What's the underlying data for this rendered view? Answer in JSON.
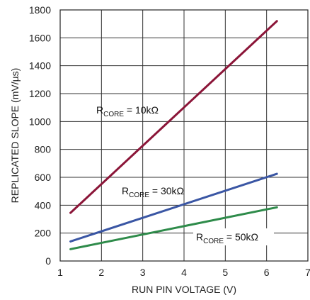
{
  "chart_data": {
    "type": "line",
    "xlabel": "RUN PIN VOLTAGE (V)",
    "ylabel": "REPLICATED SLOPE (mV/µs)",
    "xlim": [
      1,
      7
    ],
    "ylim": [
      0,
      1800
    ],
    "x_ticks": [
      1,
      2,
      3,
      4,
      5,
      6,
      7
    ],
    "y_ticks": [
      0,
      200,
      400,
      600,
      800,
      1000,
      1200,
      1400,
      1600,
      1800
    ],
    "grid": true,
    "series": [
      {
        "name": "RCORE = 10kΩ",
        "label_main": "R",
        "label_sub": "CORE",
        "label_rest": " = 10kΩ",
        "color": "#8b1538",
        "x": [
          1.25,
          6.25
        ],
        "y": [
          345,
          1720
        ]
      },
      {
        "name": "RCORE = 30kΩ",
        "label_main": "R",
        "label_sub": "CORE",
        "label_rest": " = 30kΩ",
        "color": "#3a56a4",
        "x": [
          1.25,
          6.25
        ],
        "y": [
          140,
          625
        ]
      },
      {
        "name": "RCORE = 50kΩ",
        "label_main": "R",
        "label_sub": "CORE",
        "label_rest": " = 50kΩ",
        "color": "#2e8b4a",
        "x": [
          1.25,
          6.25
        ],
        "y": [
          85,
          385
        ]
      }
    ]
  }
}
